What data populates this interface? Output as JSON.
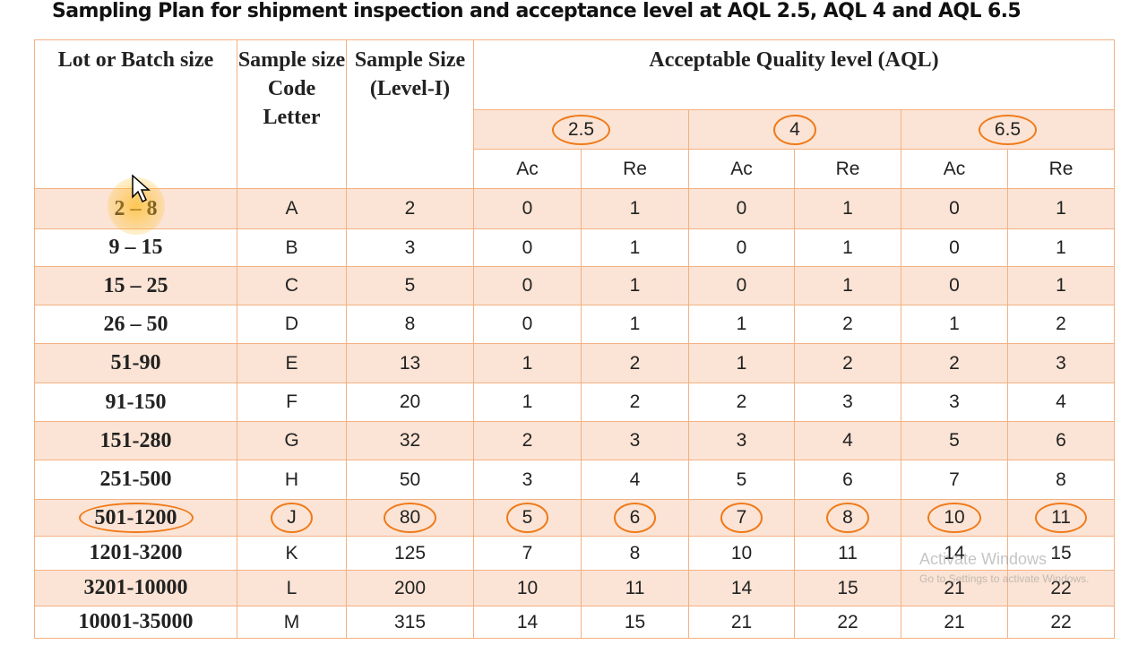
{
  "title": "Sampling Plan for shipment inspection and acceptance level at AQL 2.5, AQL 4 and AQL 6.5",
  "table": {
    "headers": {
      "lot": "Lot or Batch size",
      "code": "Sample size Code Letter",
      "sample": "Sample Size (Level-I)",
      "aql": "Acceptable Quality level (AQL)",
      "levels": [
        "2.5",
        "4",
        "6.5"
      ],
      "ac": "Ac",
      "re": "Re"
    },
    "rows": [
      [
        "2 – 8",
        "A",
        2,
        0,
        1,
        0,
        1,
        0,
        1
      ],
      [
        "9 – 15",
        "B",
        3,
        0,
        1,
        0,
        1,
        0,
        1
      ],
      [
        "15 – 25",
        "C",
        5,
        0,
        1,
        0,
        1,
        0,
        1
      ],
      [
        "26 – 50",
        "D",
        8,
        0,
        1,
        1,
        2,
        1,
        2
      ],
      [
        "51-90",
        "E",
        13,
        1,
        2,
        1,
        2,
        2,
        3
      ],
      [
        "91-150",
        "F",
        20,
        1,
        2,
        2,
        3,
        3,
        4
      ],
      [
        "151-280",
        "G",
        32,
        2,
        3,
        3,
        4,
        5,
        6
      ],
      [
        "251-500",
        "H",
        50,
        3,
        4,
        5,
        6,
        7,
        8
      ],
      [
        "501-1200",
        "J",
        80,
        5,
        6,
        7,
        8,
        10,
        11
      ],
      [
        "1201-3200",
        "K",
        125,
        7,
        8,
        10,
        11,
        14,
        15
      ],
      [
        "3201-10000",
        "L",
        200,
        10,
        11,
        14,
        15,
        21,
        22
      ],
      [
        "10001-35000",
        "M",
        315,
        14,
        15,
        21,
        22,
        21,
        22
      ]
    ]
  },
  "watermark": {
    "title": "Activate Windows",
    "text": "Go to Settings to activate Windows."
  }
}
